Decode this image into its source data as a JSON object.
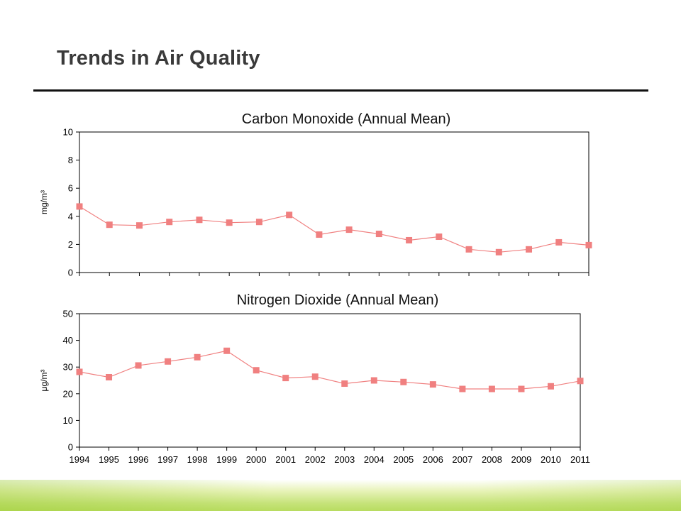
{
  "slide": {
    "title": "Trends in Air Quality"
  },
  "colors": {
    "series": "#f08080",
    "marker": "#f08080",
    "axis": "#000000",
    "footer_band": "#b8dc60"
  },
  "chart_data": [
    {
      "type": "line",
      "title": "Carbon Monoxide (Annual Mean)",
      "ylabel": "mg/m³",
      "xlabel": "",
      "ylim": [
        0,
        10
      ],
      "yticks": [
        "0",
        "2",
        "4",
        "6",
        "8",
        "10"
      ],
      "grid": false,
      "legend": "none",
      "x": [
        "1994",
        "1995",
        "1996",
        "1997",
        "1998",
        "1999",
        "2000",
        "2001",
        "2002",
        "2003",
        "2004",
        "2005",
        "2006",
        "2007",
        "2008",
        "2009",
        "2010",
        "2011"
      ],
      "series": [
        {
          "values": [
            4.7,
            3.4,
            3.35,
            3.6,
            3.75,
            3.55,
            3.6,
            4.1,
            2.7,
            3.05,
            2.75,
            2.3,
            2.55,
            1.65,
            1.45,
            1.65,
            2.15,
            1.95
          ]
        }
      ]
    },
    {
      "type": "line",
      "title": "Nitrogen Dioxide (Annual Mean)",
      "ylabel": "μg/m³",
      "xlabel": "",
      "ylim": [
        0,
        50
      ],
      "yticks": [
        "0",
        "10",
        "20",
        "30",
        "40",
        "50"
      ],
      "grid": false,
      "legend": "none",
      "x": [
        "1994",
        "1995",
        "1996",
        "1997",
        "1998",
        "1999",
        "2000",
        "2001",
        "2002",
        "2003",
        "2004",
        "2005",
        "2006",
        "2007",
        "2008",
        "2009",
        "2010",
        "2011"
      ],
      "series": [
        {
          "values": [
            28.2,
            26.2,
            30.6,
            32.1,
            33.7,
            36.1,
            28.8,
            25.9,
            26.4,
            23.8,
            25.0,
            24.4,
            23.5,
            21.8,
            21.8,
            21.8,
            22.8,
            24.8
          ]
        }
      ]
    }
  ]
}
